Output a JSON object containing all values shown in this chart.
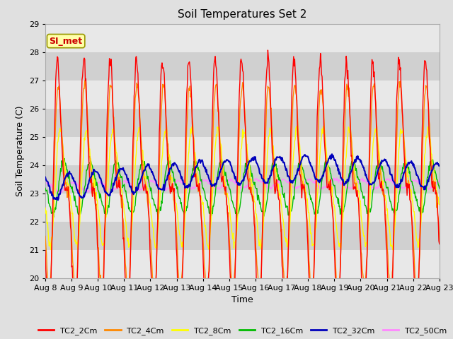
{
  "title": "Soil Temperatures Set 2",
  "xlabel": "Time",
  "ylabel": "Soil Temperature (C)",
  "ylim": [
    20.0,
    29.0
  ],
  "yticks": [
    20.0,
    21.0,
    22.0,
    23.0,
    24.0,
    25.0,
    26.0,
    27.0,
    28.0,
    29.0
  ],
  "bg_color": "#e0e0e0",
  "plot_bg_color": "#d0d0d0",
  "stripe_color_light": "#e8e8e8",
  "colors": {
    "TC2_2Cm": "#ff0000",
    "TC2_4Cm": "#ff8800",
    "TC2_8Cm": "#ffff00",
    "TC2_16Cm": "#00bb00",
    "TC2_32Cm": "#0000bb",
    "TC2_50Cm": "#ff88ff"
  },
  "annotation_text": "SI_met",
  "annotation_color": "#cc0000",
  "annotation_bg": "#ffffaa",
  "annotation_border": "#999900",
  "n_days": 15,
  "points_per_day": 48,
  "seed": 12
}
